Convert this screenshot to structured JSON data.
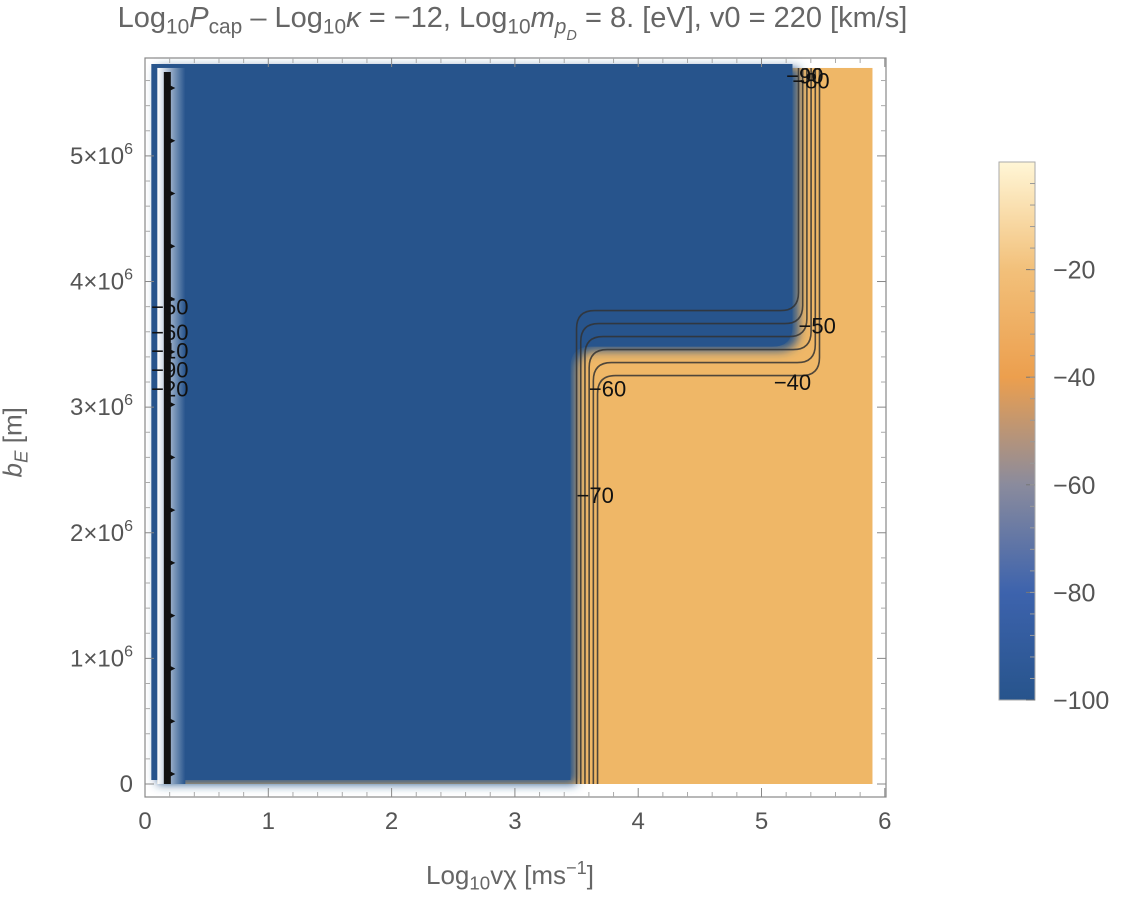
{
  "title": {
    "p1": "Log",
    "p1_sub": "10",
    "p1_var": "P",
    "p1_var_sub": "cap",
    "p2": " – Log",
    "p2_sub": "10",
    "p2_var": "κ",
    "p2_val": " = −12, ",
    "p3": "Log",
    "p3_sub": "10",
    "p3_var": "m",
    "p3_var_sub": "p",
    "p3_rest": " = 8. [eV], v0 = 220 [km/s]"
  },
  "x_axis_label": {
    "pre": "Log",
    "sub": "10",
    "var": "vχ [ms",
    "sup": "−1",
    "post": "]"
  },
  "y_axis_label": {
    "var": "b",
    "sub": "E",
    "post": " [m]"
  },
  "chart_data": {
    "type": "heatmap",
    "title": "Log10 Pcap – Log10 κ = −12, Log10 m_pD = 8. [eV], v0 = 220 [km/s]",
    "xlabel": "Log10 vχ [ms^-1]",
    "ylabel": "b_E [m]",
    "xlim": [
      0,
      6
    ],
    "ylim": [
      0,
      5700000
    ],
    "x_ticks": [
      0,
      1,
      2,
      3,
      4,
      5,
      6
    ],
    "x_tick_labels": [
      "0",
      "1",
      "2",
      "3",
      "4",
      "5",
      "6"
    ],
    "y_ticks": [
      0,
      1000000,
      2000000,
      3000000,
      4000000,
      5000000
    ],
    "y_tick_labels": [
      "0",
      "1×10^6",
      "2×10^6",
      "3×10^6",
      "4×10^6",
      "5×10^6"
    ],
    "data_extent": {
      "x": [
        0.1,
        5.9
      ],
      "y": [
        0,
        5700000
      ]
    },
    "regions": [
      {
        "name": "low",
        "value": -100,
        "color": "#27548c",
        "description": "dark blue region: x < 3.5 for all y, and x < 5.3 for y > 3.3e6"
      },
      {
        "name": "high",
        "value": -35,
        "color": "#efb767",
        "description": "orange region: x > 3.6 below y ≈ 3.2e6, x > 5.4 above"
      }
    ],
    "boundary": {
      "lower_x_edge": 3.5,
      "upper_x_edge": 5.3,
      "step_y": 3450000
    },
    "contour_levels": [
      -90,
      -80,
      -70,
      -60,
      -50,
      -40
    ],
    "contour_labels": [
      {
        "text": "−90",
        "x": 5.2,
        "y": 5640000
      },
      {
        "text": "−80",
        "x": 5.25,
        "y": 5600000
      },
      {
        "text": "−50",
        "x": 5.3,
        "y": 3650000
      },
      {
        "text": "−40",
        "x": 5.1,
        "y": 3200000
      },
      {
        "text": "−60",
        "x": 3.6,
        "y": 3150000
      },
      {
        "text": "−70",
        "x": 3.5,
        "y": 2300000
      },
      {
        "text": "−50",
        "x": 0.05,
        "y": 3800000
      },
      {
        "text": "−60",
        "x": 0.05,
        "y": 3600000
      },
      {
        "text": "−10",
        "x": 0.05,
        "y": 3450000
      },
      {
        "text": "−90",
        "x": 0.05,
        "y": 3300000
      },
      {
        "text": "−20",
        "x": 0.05,
        "y": 3150000
      }
    ],
    "colorbar": {
      "range": [
        -100,
        0
      ],
      "ticks": [
        -20,
        -40,
        -60,
        -80,
        -100
      ],
      "tick_labels": [
        "−20",
        "−40",
        "−60",
        "−80",
        "−100"
      ],
      "colors": [
        "#27548c",
        "#3d63ad",
        "#8a8b9d",
        "#ec9f4e",
        "#f2c07a",
        "#fff6d6"
      ]
    }
  }
}
